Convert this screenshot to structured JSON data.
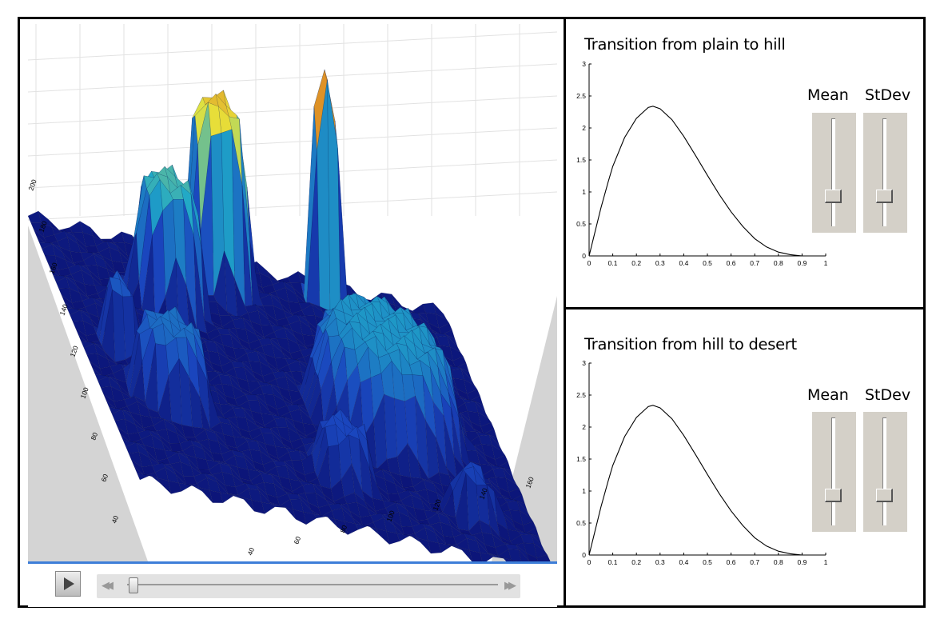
{
  "viewer": {
    "colors": {
      "floor_low": "#0a0f70",
      "floor_high": "#1a2aa0",
      "mid": "#1fa8c8",
      "high": "#e8e43a",
      "peak": "#d22a10",
      "grey_wall": "#d4d4d4"
    },
    "axis_ticks_left": [
      "40",
      "60",
      "80",
      "100",
      "120",
      "140",
      "160",
      "180",
      "200"
    ],
    "axis_ticks_bottom": [
      "40",
      "60",
      "80",
      "100",
      "120",
      "140",
      "160"
    ]
  },
  "player": {
    "play_icon": "play-icon",
    "rewind_icon": "rewind-icon",
    "forward_icon": "fast-forward-icon",
    "rewind_glyph": "◀◀",
    "forward_glyph": "▶▶",
    "position": 0.03
  },
  "panels": [
    {
      "title": "Transition from plain to hill",
      "mean_label": "Mean",
      "stdev_label": "StDev",
      "mean_level": 0.25,
      "stdev_level": 0.25,
      "chart_data": {
        "type": "line",
        "xlim": [
          0,
          1
        ],
        "ylim": [
          0,
          3
        ],
        "xticks": [
          "0",
          "0.1",
          "0.2",
          "0.3",
          "0.4",
          "0.5",
          "0.6",
          "0.7",
          "0.8",
          "0.9",
          "1"
        ],
        "yticks": [
          "0",
          "0.5",
          "1",
          "1.5",
          "2",
          "2.5",
          "3"
        ],
        "x": [
          0,
          0.02,
          0.05,
          0.08,
          0.1,
          0.15,
          0.2,
          0.25,
          0.27,
          0.3,
          0.35,
          0.4,
          0.45,
          0.5,
          0.55,
          0.6,
          0.65,
          0.7,
          0.75,
          0.8,
          0.85,
          0.9
        ],
        "y": [
          0,
          0.3,
          0.75,
          1.15,
          1.4,
          1.85,
          2.15,
          2.32,
          2.34,
          2.3,
          2.13,
          1.87,
          1.57,
          1.26,
          0.96,
          0.69,
          0.46,
          0.27,
          0.14,
          0.06,
          0.02,
          0
        ]
      }
    },
    {
      "title": "Transition from hill to desert",
      "mean_label": "Mean",
      "stdev_label": "StDev",
      "mean_level": 0.25,
      "stdev_level": 0.25,
      "chart_data": {
        "type": "line",
        "xlim": [
          0,
          1
        ],
        "ylim": [
          0,
          3
        ],
        "xticks": [
          "0",
          "0.1",
          "0.2",
          "0.3",
          "0.4",
          "0.5",
          "0.6",
          "0.7",
          "0.8",
          "0.9",
          "1"
        ],
        "yticks": [
          "0",
          "0.5",
          "1",
          "1.5",
          "2",
          "2.5",
          "3"
        ],
        "x": [
          0,
          0.02,
          0.05,
          0.08,
          0.1,
          0.15,
          0.2,
          0.25,
          0.27,
          0.3,
          0.35,
          0.4,
          0.45,
          0.5,
          0.55,
          0.6,
          0.65,
          0.7,
          0.75,
          0.8,
          0.85,
          0.9
        ],
        "y": [
          0,
          0.3,
          0.75,
          1.15,
          1.4,
          1.85,
          2.15,
          2.32,
          2.34,
          2.3,
          2.13,
          1.87,
          1.57,
          1.26,
          0.96,
          0.69,
          0.46,
          0.27,
          0.14,
          0.06,
          0.02,
          0
        ]
      }
    }
  ]
}
